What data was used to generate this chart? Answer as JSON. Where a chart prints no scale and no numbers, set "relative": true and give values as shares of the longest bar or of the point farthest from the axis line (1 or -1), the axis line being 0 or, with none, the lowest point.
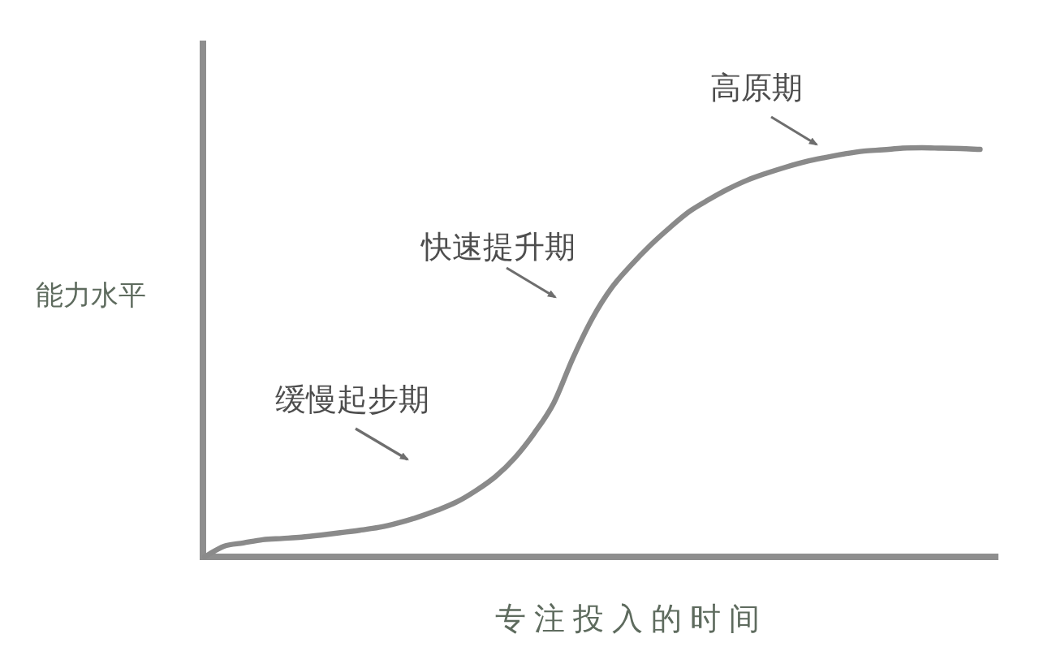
{
  "chart_data": {
    "type": "line",
    "relative": true,
    "xlabel": "专注投入的时间",
    "ylabel": "能力水平",
    "annotations": [
      "缓慢起步期",
      "快速提升期",
      "高原期"
    ],
    "categories": [
      null,
      null,
      null,
      null,
      null,
      null,
      null,
      null,
      null,
      null,
      null,
      null,
      null,
      null,
      null,
      null,
      null,
      null,
      null,
      null,
      null,
      null,
      null,
      null,
      null,
      null,
      null,
      null,
      null,
      null,
      null,
      null,
      null,
      null,
      null,
      null,
      null,
      null,
      null,
      null,
      null
    ],
    "color": "#8a8a8a",
    "values": [
      0,
      0.026,
      0.034,
      0.042,
      0.045,
      0.048,
      0.053,
      0.059,
      0.065,
      0.072,
      0.083,
      0.097,
      0.114,
      0.134,
      0.162,
      0.196,
      0.242,
      0.302,
      0.375,
      0.486,
      0.583,
      0.658,
      0.713,
      0.762,
      0.805,
      0.844,
      0.873,
      0.899,
      0.921,
      0.938,
      0.953,
      0.966,
      0.976,
      0.985,
      0.992,
      0.995,
      0.999,
      1,
      0.999,
      0.998,
      0.996
    ]
  }
}
